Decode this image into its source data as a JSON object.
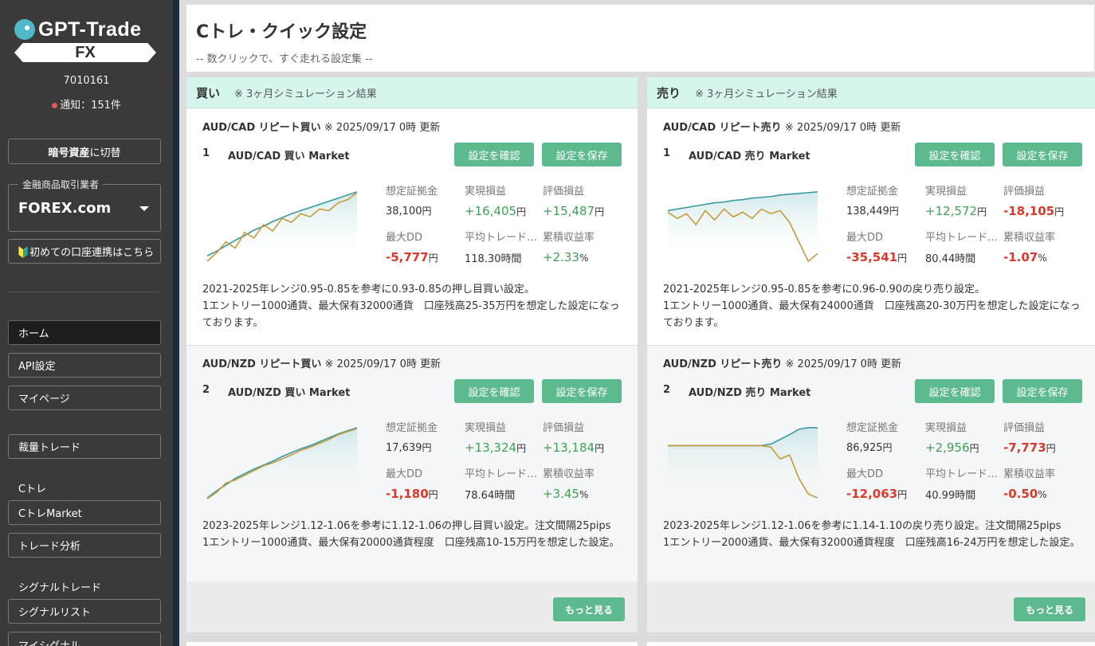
{
  "sidebar": {
    "logo_text": "GPT-Trade",
    "logo_fx": "FX",
    "user_id": "7010161",
    "notify": "通知：151件",
    "crypto_strong": "暗号資産",
    "crypto_rest": "に切替",
    "broker_label": "金融商品取引業者",
    "broker_value": "FOREX.com",
    "first_link": "🔰初めての口座連携はこちら",
    "nav": [
      "ホーム",
      "API設定",
      "マイページ",
      "裁量トレード"
    ],
    "ctre_heading": "Cトレ",
    "ctre_items": [
      "CトレMarket",
      "トレード分析"
    ],
    "signal_heading": "シグナルトレード",
    "signal_items": [
      "シグナルリスト",
      "マイシグナル"
    ]
  },
  "main": {
    "title": "Cトレ・クイック設定",
    "subtitle": "-- 数クリックで、すぐ走れる設定集 --",
    "columns": [
      {
        "heading": "買い",
        "note": "※ 3ヶ月シミュレーション結果",
        "more": "もっと見る",
        "cards": [
          {
            "pair_title": "AUD/CAD リピート買い",
            "updated": "※ 2025/09/17 0時 更新",
            "num": "1",
            "name": "AUD/CAD 買い Market",
            "btn_check": "設定を確認",
            "btn_save": "設定を保存",
            "stats": {
              "margin_label": "想定証拠金",
              "margin": "38,100",
              "margin_unit": "円",
              "realized_label": "実現損益",
              "realized": "+16,405",
              "realized_unit": "円",
              "unrealized_label": "評価損益",
              "unrealized": "+15,487",
              "unrealized_unit": "円",
              "dd_label": "最大DD",
              "dd": "-5,777",
              "dd_unit": "円",
              "avg_label": "平均トレード時間",
              "avg": "118.30時間",
              "cum_label": "累積収益率",
              "cum": "+2.33",
              "cum_unit": "%"
            },
            "desc1": "2021-2025年レンジ0.95-0.85を参考に0.93-0.85の押し目買い設定。",
            "desc2": "1エントリー1000通貨、最大保有32000通貨　口座残高25-35万円を想定した設定になっております。",
            "chart": {
              "teal": [
                0.12,
                0.18,
                0.25,
                0.32,
                0.38,
                0.45,
                0.5,
                0.56,
                0.61,
                0.66,
                0.7,
                0.74,
                0.78,
                0.82,
                0.86,
                0.9,
                0.94
              ],
              "gold": [
                0.05,
                0.16,
                0.3,
                0.22,
                0.42,
                0.35,
                0.52,
                0.44,
                0.6,
                0.55,
                0.66,
                0.62,
                0.72,
                0.7,
                0.8,
                0.84,
                0.93
              ]
            }
          },
          {
            "pair_title": "AUD/NZD リピート買い",
            "updated": "※ 2025/09/17 0時 更新",
            "num": "2",
            "name": "AUD/NZD 買い Market",
            "btn_check": "設定を確認",
            "btn_save": "設定を保存",
            "stats": {
              "margin_label": "想定証拠金",
              "margin": "17,639",
              "margin_unit": "円",
              "realized_label": "実現損益",
              "realized": "+13,324",
              "realized_unit": "円",
              "unrealized_label": "評価損益",
              "unrealized": "+13,184",
              "unrealized_unit": "円",
              "dd_label": "最大DD",
              "dd": "-1,180",
              "dd_unit": "円",
              "avg_label": "平均トレード時間",
              "avg": "78.64時間",
              "cum_label": "累積収益率",
              "cum": "+3.45",
              "cum_unit": "%"
            },
            "desc1": "2023-2025年レンジ1.12-1.06を参考に1.12-1.06の押し目買い設定。注文間隔25pips",
            "desc2": "1エントリー1000通貨、最大保有20000通貨程度　口座残高10-15万円を想定した設定。",
            "chart": {
              "teal": [
                0.05,
                0.14,
                0.22,
                0.3,
                0.36,
                0.42,
                0.47,
                0.52,
                0.58,
                0.63,
                0.68,
                0.72,
                0.77,
                0.82,
                0.87,
                0.91,
                0.95
              ],
              "gold": [
                0.04,
                0.12,
                0.24,
                0.28,
                0.34,
                0.4,
                0.46,
                0.5,
                0.55,
                0.6,
                0.66,
                0.7,
                0.75,
                0.8,
                0.86,
                0.9,
                0.94
              ]
            }
          }
        ]
      },
      {
        "heading": "売り",
        "note": "※ 3ヶ月シミュレーション結果",
        "more": "もっと見る",
        "cards": [
          {
            "pair_title": "AUD/CAD リピート売り",
            "updated": "※ 2025/09/17 0時 更新",
            "num": "1",
            "name": "AUD/CAD 売り Market",
            "btn_check": "設定を確認",
            "btn_save": "設定を保存",
            "stats": {
              "margin_label": "想定証拠金",
              "margin": "138,449",
              "margin_unit": "円",
              "realized_label": "実現損益",
              "realized": "+12,572",
              "realized_unit": "円",
              "unrealized_label": "評価損益",
              "unrealized": "-18,105",
              "unrealized_unit": "円",
              "dd_label": "最大DD",
              "dd": "-35,541",
              "dd_unit": "円",
              "avg_label": "平均トレード時間",
              "avg": "80.44時間",
              "cum_label": "累積収益率",
              "cum": "-1.07",
              "cum_unit": "%"
            },
            "desc1": "2021-2025年レンジ0.95-0.85を参考に0.96-0.90の戻り売り設定。",
            "desc2": "1エントリー1000通貨、最大保有24000通貨　口座残高20-30万円を想定した設定になっております。",
            "chart": {
              "teal": [
                0.7,
                0.72,
                0.74,
                0.76,
                0.78,
                0.8,
                0.81,
                0.83,
                0.84,
                0.86,
                0.87,
                0.88,
                0.9,
                0.91,
                0.92,
                0.93,
                0.94
              ],
              "gold": [
                0.68,
                0.6,
                0.66,
                0.52,
                0.7,
                0.58,
                0.72,
                0.62,
                0.68,
                0.6,
                0.72,
                0.66,
                0.7,
                0.55,
                0.3,
                0.05,
                0.15
              ]
            }
          },
          {
            "pair_title": "AUD/NZD リピート売り",
            "updated": "※ 2025/09/17 0時 更新",
            "num": "2",
            "name": "AUD/NZD 売り Market",
            "btn_check": "設定を確認",
            "btn_save": "設定を保存",
            "stats": {
              "margin_label": "想定証拠金",
              "margin": "86,925",
              "margin_unit": "円",
              "realized_label": "実現損益",
              "realized": "+2,956",
              "realized_unit": "円",
              "unrealized_label": "評価損益",
              "unrealized": "-7,773",
              "unrealized_unit": "円",
              "dd_label": "最大DD",
              "dd": "-12,063",
              "dd_unit": "円",
              "avg_label": "平均トレード時間",
              "avg": "40.99時間",
              "cum_label": "累積収益率",
              "cum": "-0.50",
              "cum_unit": "%"
            },
            "desc1": "2023-2025年レンジ1.12-1.06を参考に1.14-1.10の戻り売り設定。注文間隔25pips",
            "desc2": "1エントリー2000通貨、最大保有32000通貨程度　口座残高16-24万円を想定した設定。",
            "chart": {
              "teal": [
                0.72,
                0.72,
                0.72,
                0.72,
                0.72,
                0.72,
                0.72,
                0.72,
                0.72,
                0.72,
                0.72,
                0.74,
                0.8,
                0.86,
                0.93,
                0.95,
                0.95
              ],
              "gold": [
                0.72,
                0.72,
                0.72,
                0.72,
                0.72,
                0.72,
                0.72,
                0.72,
                0.72,
                0.72,
                0.72,
                0.7,
                0.55,
                0.6,
                0.3,
                0.1,
                0.05
              ]
            }
          }
        ]
      }
    ]
  },
  "colors": {
    "accent_green": "#5dba8f",
    "teal_line": "#3a9aa3",
    "gold_line": "#c99a3a",
    "negative": "#d93a2b",
    "positive": "#3fa154"
  }
}
